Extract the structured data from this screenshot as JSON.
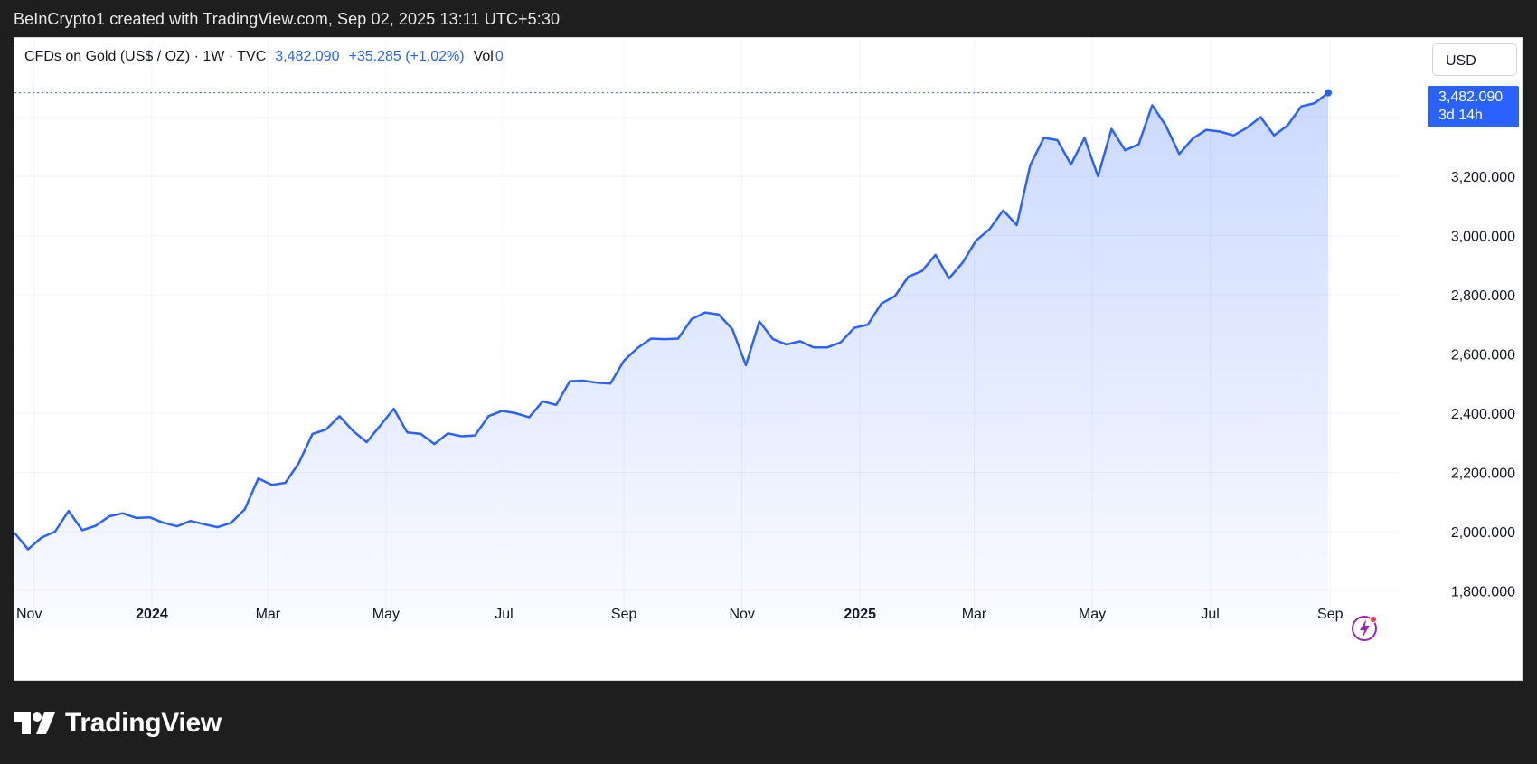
{
  "caption": "BeInCrypto1 created with TradingView.com, Sep 02, 2025 13:11 UTC+5:30",
  "legend": {
    "symbol": "CFDs on Gold (US$ / OZ) · 1W · TVC",
    "price": "3,482.090",
    "change": "+35.285 (+1.02%)",
    "vol_label": "Vol",
    "vol_value": "0"
  },
  "currency_button": "USD",
  "price_tag": {
    "price": "3,482.090",
    "countdown": "3d 14h"
  },
  "brand": {
    "name": "TradingView"
  },
  "colors": {
    "line": "#2962ff",
    "background": "#ffffff",
    "frame": "#1e1e1e"
  },
  "icons": {
    "logo": "tradingview-logo",
    "flash": "lightning-icon"
  },
  "chart_data": {
    "type": "area",
    "title": "CFDs on Gold (US$ / OZ) · 1W · TVC",
    "xlabel": "",
    "ylabel": "",
    "ylim": [
      1800,
      3600
    ],
    "xlim": [
      "2023-10-22",
      "2025-10-12"
    ],
    "grid": true,
    "y_ticks": [
      {
        "value": 1800,
        "label": "1,800.000"
      },
      {
        "value": 2000,
        "label": "2,000.000"
      },
      {
        "value": 2200,
        "label": "2,200.000"
      },
      {
        "value": 2400,
        "label": "2,400.000"
      },
      {
        "value": 2600,
        "label": "2,600.000"
      },
      {
        "value": 2800,
        "label": "2,800.000"
      },
      {
        "value": 3000,
        "label": "3,000.000"
      },
      {
        "value": 3200,
        "label": "3,200.000"
      },
      {
        "value": 3400,
        "label": ""
      }
    ],
    "x_ticks": [
      {
        "date": "2023-11-01",
        "label": "Nov",
        "bold": false
      },
      {
        "date": "2024-01-01",
        "label": "2024",
        "bold": true
      },
      {
        "date": "2024-03-01",
        "label": "Mar",
        "bold": false
      },
      {
        "date": "2024-05-01",
        "label": "May",
        "bold": false
      },
      {
        "date": "2024-07-01",
        "label": "Jul",
        "bold": false
      },
      {
        "date": "2024-09-01",
        "label": "Sep",
        "bold": false
      },
      {
        "date": "2024-11-01",
        "label": "Nov",
        "bold": false
      },
      {
        "date": "2025-01-01",
        "label": "2025",
        "bold": true
      },
      {
        "date": "2025-03-01",
        "label": "Mar",
        "bold": false
      },
      {
        "date": "2025-05-01",
        "label": "May",
        "bold": false
      },
      {
        "date": "2025-07-01",
        "label": "Jul",
        "bold": false
      },
      {
        "date": "2025-09-01",
        "label": "Sep",
        "bold": false
      }
    ],
    "series": [
      {
        "x": [
          "2023-10-22",
          "2023-10-29",
          "2023-11-05",
          "2023-11-12",
          "2023-11-19",
          "2023-11-26",
          "2023-12-03",
          "2023-12-10",
          "2023-12-17",
          "2023-12-24",
          "2023-12-31",
          "2024-01-07",
          "2024-01-14",
          "2024-01-21",
          "2024-01-28",
          "2024-02-04",
          "2024-02-11",
          "2024-02-18",
          "2024-02-25",
          "2024-03-03",
          "2024-03-10",
          "2024-03-17",
          "2024-03-24",
          "2024-03-31",
          "2024-04-07",
          "2024-04-14",
          "2024-04-21",
          "2024-04-28",
          "2024-05-05",
          "2024-05-12",
          "2024-05-19",
          "2024-05-26",
          "2024-06-02",
          "2024-06-09",
          "2024-06-16",
          "2024-06-23",
          "2024-06-30",
          "2024-07-07",
          "2024-07-14",
          "2024-07-21",
          "2024-07-28",
          "2024-08-04",
          "2024-08-11",
          "2024-08-18",
          "2024-08-25",
          "2024-09-01",
          "2024-09-08",
          "2024-09-15",
          "2024-09-22",
          "2024-09-29",
          "2024-10-06",
          "2024-10-13",
          "2024-10-20",
          "2024-10-27",
          "2024-11-03",
          "2024-11-10",
          "2024-11-17",
          "2024-11-24",
          "2024-12-01",
          "2024-12-08",
          "2024-12-15",
          "2024-12-22",
          "2024-12-29",
          "2025-01-05",
          "2025-01-12",
          "2025-01-19",
          "2025-01-26",
          "2025-02-02",
          "2025-02-09",
          "2025-02-16",
          "2025-02-23",
          "2025-03-02",
          "2025-03-09",
          "2025-03-16",
          "2025-03-23",
          "2025-03-30",
          "2025-04-06",
          "2025-04-13",
          "2025-04-20",
          "2025-04-27",
          "2025-05-04",
          "2025-05-11",
          "2025-05-18",
          "2025-05-25",
          "2025-06-01",
          "2025-06-08",
          "2025-06-15",
          "2025-06-22",
          "2025-06-29",
          "2025-07-06",
          "2025-07-13",
          "2025-07-20",
          "2025-07-27",
          "2025-08-03",
          "2025-08-10",
          "2025-08-17",
          "2025-08-24",
          "2025-08-31"
        ],
        "y": [
          1996,
          1940,
          1980,
          2000,
          2070,
          2005,
          2020,
          2052,
          2062,
          2046,
          2048,
          2030,
          2018,
          2036,
          2025,
          2015,
          2030,
          2075,
          2180,
          2158,
          2165,
          2232,
          2330,
          2345,
          2390,
          2340,
          2302,
          2358,
          2415,
          2335,
          2330,
          2296,
          2332,
          2322,
          2325,
          2390,
          2408,
          2400,
          2386,
          2440,
          2428,
          2508,
          2510,
          2503,
          2500,
          2577,
          2620,
          2652,
          2650,
          2652,
          2718,
          2740,
          2733,
          2684,
          2562,
          2710,
          2650,
          2632,
          2643,
          2622,
          2622,
          2639,
          2688,
          2699,
          2770,
          2795,
          2861,
          2880,
          2935,
          2855,
          2908,
          2983,
          3022,
          3085,
          3035,
          3238,
          3330,
          3322,
          3240,
          3330,
          3200,
          3360,
          3288,
          3308,
          3440,
          3372,
          3275,
          3328,
          3357,
          3351,
          3338,
          3364,
          3400,
          3338,
          3372,
          3436,
          3447,
          3482
        ]
      }
    ],
    "last_value": 3482.09
  }
}
